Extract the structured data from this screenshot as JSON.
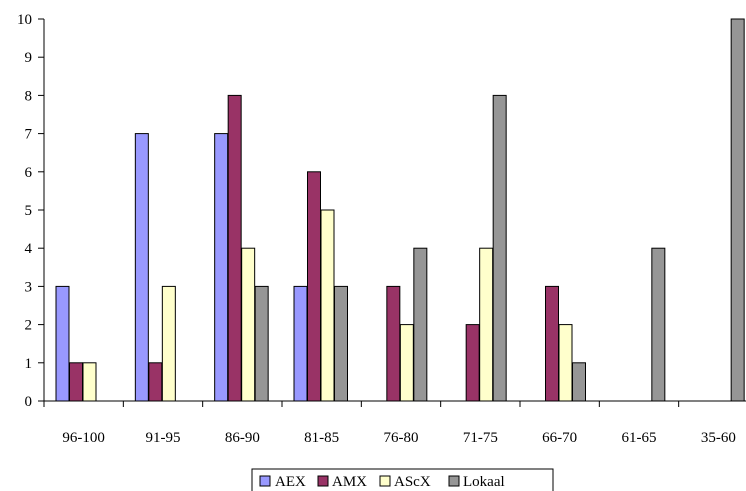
{
  "chart_data": {
    "type": "bar",
    "categories": [
      "96-100",
      "91-95",
      "86-90",
      "81-85",
      "76-80",
      "71-75",
      "66-70",
      "61-65",
      "35-60"
    ],
    "series": [
      {
        "name": "AEX",
        "color": "#9999ff",
        "values": [
          3,
          7,
          7,
          3,
          0,
          0,
          0,
          0,
          0
        ]
      },
      {
        "name": "AMX",
        "color": "#993366",
        "values": [
          1,
          1,
          8,
          6,
          3,
          2,
          3,
          0,
          0
        ]
      },
      {
        "name": "AScX",
        "color": "#ffffcc",
        "values": [
          1,
          3,
          4,
          5,
          2,
          4,
          2,
          0,
          0
        ]
      },
      {
        "name": "Lokaal",
        "color": "#969696",
        "values": [
          0,
          0,
          3,
          3,
          4,
          8,
          1,
          4,
          10
        ]
      }
    ],
    "ylim": [
      0,
      10
    ],
    "yticks": [
      0,
      1,
      2,
      3,
      4,
      5,
      6,
      7,
      8,
      9,
      10
    ],
    "grid": false,
    "legend_position": "bottom"
  }
}
